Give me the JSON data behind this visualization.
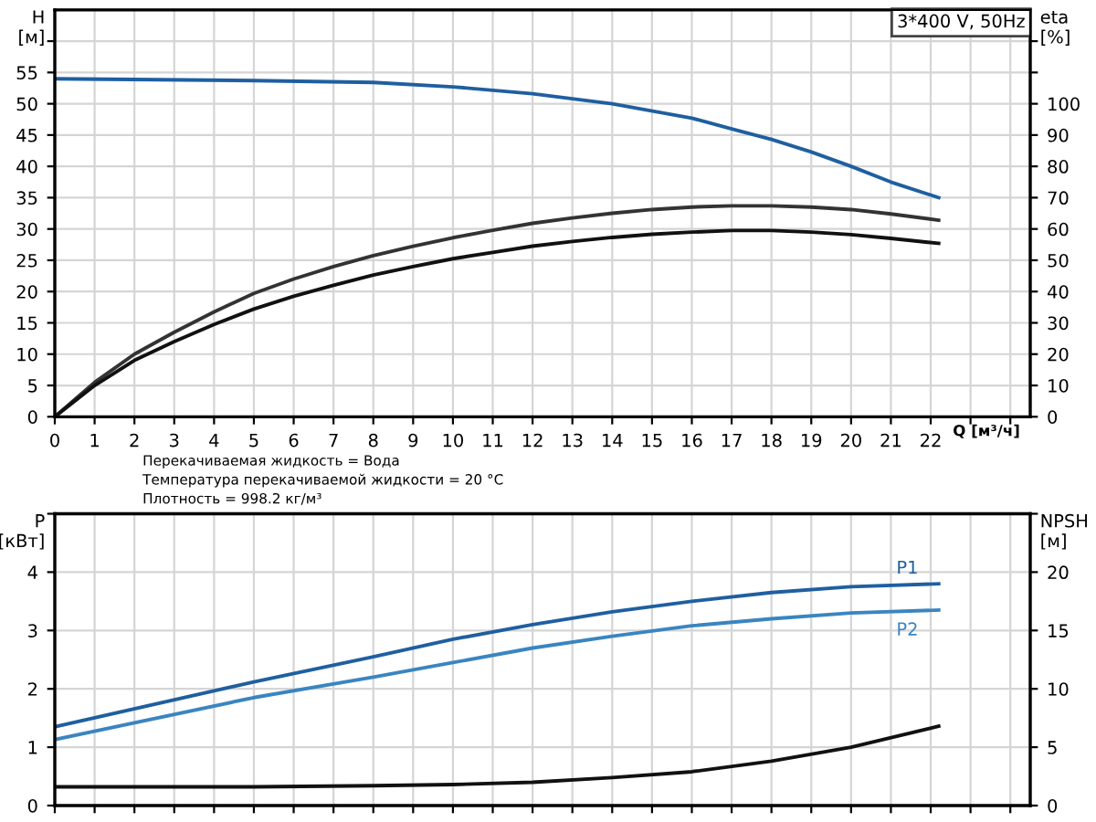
{
  "chart_data": [
    {
      "type": "line",
      "subtitle": "3*400 V, 50Hz",
      "xlabel": "Q [м³/ч]",
      "ylabel": "H\n[м]",
      "y2label": "eta\n[%]",
      "annotations": [
        "Перекачиваемая жидкость = Вода",
        "Температура перекачиваемой жидкости = 20 °C",
        "Плотность = 998.2 кг/м³"
      ],
      "xlim": [
        0,
        24.5
      ],
      "xticks": [
        0,
        1,
        2,
        3,
        4,
        5,
        6,
        7,
        8,
        9,
        10,
        11,
        12,
        13,
        14,
        15,
        16,
        17,
        18,
        19,
        20,
        21,
        22,
        {
          "value": 23,
          "label": null
        },
        {
          "value": 24,
          "label": null
        }
      ],
      "ylim": [
        0,
        65
      ],
      "yticks": [
        0,
        5,
        10,
        15,
        20,
        25,
        30,
        35,
        40,
        45,
        50,
        55,
        {
          "value": 60,
          "label": null
        }
      ],
      "y2lim": [
        0,
        130
      ],
      "y2ticks": [
        0,
        10,
        20,
        30,
        40,
        50,
        60,
        70,
        80,
        90,
        100,
        {
          "value": 110,
          "label": null
        },
        {
          "value": 120,
          "label": null
        }
      ],
      "grid": true,
      "legend": false,
      "marker": "none",
      "line_style": "solid",
      "series": [
        {
          "color": "#1f5fa0",
          "x": [
            0,
            5,
            8,
            10,
            12,
            14,
            16,
            17,
            18,
            19,
            20,
            21,
            22.2
          ],
          "values": [
            54,
            53.7,
            53.4,
            52.7,
            51.6,
            50,
            47.7,
            46,
            44.3,
            42.3,
            40,
            37.5,
            35
          ]
        },
        {
          "color": "#333333",
          "axis": "y2",
          "x": [
            0,
            1,
            2,
            3,
            4,
            5,
            6,
            7,
            8,
            9,
            10,
            11,
            12,
            13,
            14,
            15,
            16,
            17,
            18,
            19,
            20,
            21,
            22.2
          ],
          "values": [
            0,
            11,
            20,
            27,
            33.5,
            39.4,
            44,
            48,
            51.5,
            54.5,
            57.2,
            59.6,
            61.8,
            63.5,
            65,
            66.2,
            67,
            67.4,
            67.4,
            67,
            66.2,
            64.8,
            62.8
          ]
        },
        {
          "color": "#111111",
          "axis": "y2",
          "x": [
            0,
            1,
            2,
            3,
            4,
            5,
            6,
            7,
            8,
            9,
            10,
            11,
            12,
            13,
            14,
            15,
            16,
            17,
            18,
            19,
            20,
            21,
            22.2
          ],
          "values": [
            0,
            10,
            18,
            24,
            29.5,
            34.4,
            38.5,
            42,
            45.3,
            48,
            50.5,
            52.5,
            54.5,
            56,
            57.3,
            58.3,
            59,
            59.5,
            59.5,
            59,
            58.2,
            57,
            55.4
          ]
        }
      ]
    },
    {
      "type": "line",
      "ylabel": "P\n[кВт]",
      "y2label": "NPSH\n[м]",
      "tick_labels": "y",
      "xlim": [
        0,
        24.5
      ],
      "xticks": [
        0,
        1,
        2,
        3,
        4,
        5,
        6,
        7,
        8,
        9,
        10,
        11,
        12,
        13,
        14,
        15,
        16,
        17,
        18,
        19,
        20,
        21,
        22,
        23,
        24
      ],
      "ylim": [
        0,
        5
      ],
      "yticks": [
        0,
        1,
        2,
        3,
        4,
        {
          "value": 5,
          "label": null
        }
      ],
      "y2lim": [
        0,
        25
      ],
      "y2ticks": [
        0,
        5,
        10,
        15,
        20,
        {
          "value": 25,
          "label": null
        }
      ],
      "grid": true,
      "legend": false,
      "marker": "none",
      "line_style": "solid",
      "series": [
        {
          "name": "P1",
          "color": "#1f5fa0",
          "x": [
            0,
            5,
            8,
            10,
            12,
            14,
            16,
            18,
            20,
            22.2
          ],
          "values": [
            1.35,
            2.12,
            2.55,
            2.85,
            3.1,
            3.32,
            3.5,
            3.65,
            3.75,
            3.8
          ]
        },
        {
          "name": "P2",
          "color": "#3a85c0",
          "x": [
            0,
            5,
            8,
            10,
            12,
            14,
            16,
            18,
            20,
            22.2
          ],
          "values": [
            1.13,
            1.85,
            2.2,
            2.45,
            2.7,
            2.9,
            3.08,
            3.2,
            3.3,
            3.35
          ]
        },
        {
          "color": "#111111",
          "axis": "y2",
          "x": [
            0,
            5,
            8,
            10,
            12,
            14,
            16,
            18,
            20,
            22.2
          ],
          "values": [
            1.6,
            1.6,
            1.7,
            1.8,
            2.0,
            2.4,
            2.9,
            3.8,
            5.0,
            6.8
          ]
        }
      ]
    }
  ]
}
